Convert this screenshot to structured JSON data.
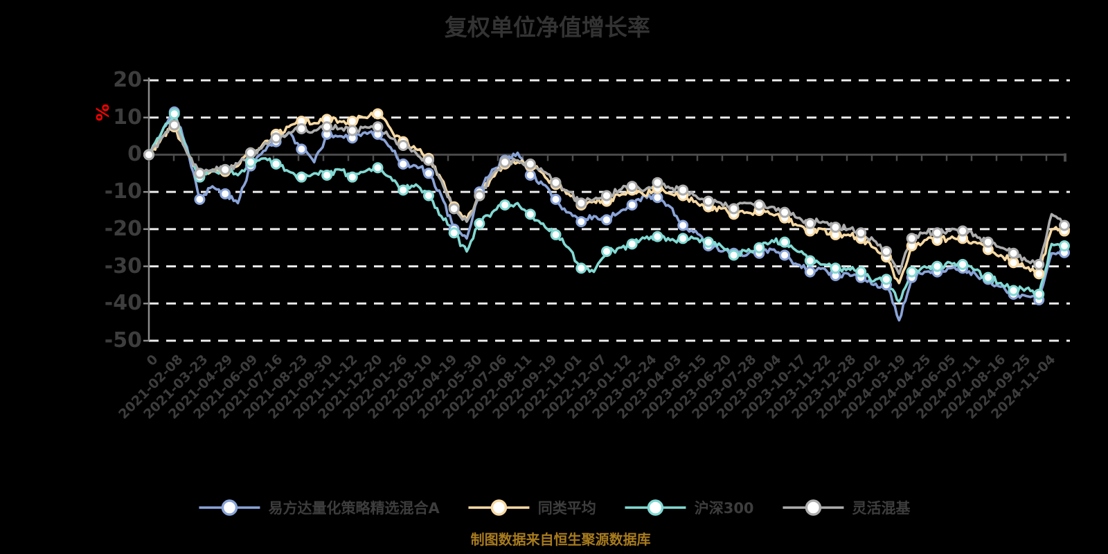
{
  "chart": {
    "title": "复权单位净值增长率",
    "source_note": "制图数据来自恒生聚源数据库",
    "y_axis": {
      "unit": "%"
    },
    "colors": {
      "background": "#000000",
      "title_text": "#333333",
      "axis_text": "#3d3d3d",
      "unit_text": "#ff0000",
      "caption_text": "#a87b1e",
      "gridline": "#ececec",
      "zero_axis": "#4a4a4a",
      "y_axis_line": "#8c8c8c",
      "marker_fill": "#ffffff"
    }
  },
  "chart_data": {
    "type": "line",
    "title": "复权单位净值增长率",
    "xlabel": "",
    "ylabel": "%",
    "ylim": [
      -50,
      20
    ],
    "y_ticks": [
      20,
      10,
      0,
      -10,
      -20,
      -30,
      -40,
      -50
    ],
    "grid": "horizontal dashed, x-axis drawn on zero line",
    "legend_position": "bottom",
    "samples_per_category_interval": 2,
    "categories": [
      "0",
      "2021-02-08",
      "2021-03-23",
      "2021-04-29",
      "2021-06-09",
      "2021-07-16",
      "2021-08-23",
      "2021-09-30",
      "2021-11-12",
      "2021-12-20",
      "2022-01-26",
      "2022-03-10",
      "2022-04-19",
      "2022-05-30",
      "2022-07-06",
      "2022-08-11",
      "2022-09-19",
      "2022-11-01",
      "2022-12-07",
      "2023-01-12",
      "2023-02-24",
      "2023-04-03",
      "2023-05-15",
      "2023-06-20",
      "2023-07-28",
      "2023-09-04",
      "2023-10-17",
      "2023-11-22",
      "2023-12-28",
      "2024-02-02",
      "2024-03-19",
      "2024-04-25",
      "2024-06-05",
      "2024-07-11",
      "2024-08-16",
      "2024-09-25",
      "2024-11-04"
    ],
    "series": [
      {
        "name": "易方达量化策略精选混合A",
        "color": "#8aa4d8",
        "values": [
          0,
          6,
          11.5,
          2,
          -12,
          -8.5,
          -10.5,
          -13,
          -3,
          1,
          3.5,
          6,
          1.5,
          -2,
          5.5,
          5,
          4.5,
          6,
          5.5,
          2,
          -2.5,
          -3,
          -5,
          -11,
          -20,
          -22.5,
          -10,
          -4,
          -1.5,
          0.5,
          -5.5,
          -8,
          -12,
          -15.5,
          -18,
          -16.5,
          -17.5,
          -15.5,
          -13.5,
          -11,
          -11.5,
          -14,
          -19,
          -20.5,
          -24.5,
          -26,
          -26.5,
          -27,
          -26.5,
          -25.5,
          -27,
          -29.5,
          -31.5,
          -30.5,
          -32.5,
          -32,
          -33,
          -35,
          -35,
          -44.5,
          -33,
          -31.5,
          -31.5,
          -30.5,
          -30.5,
          -32,
          -33.5,
          -35.5,
          -37.5,
          -38,
          -39,
          -26.5,
          -26.3
        ]
      },
      {
        "name": "同类平均",
        "color": "#f7d9a3",
        "values": [
          0,
          4.5,
          7.5,
          0.5,
          -5.5,
          -4,
          -4.5,
          -3,
          0.5,
          3,
          5.5,
          7.5,
          9,
          8.5,
          9.5,
          9,
          9,
          10,
          11,
          7,
          3.5,
          1.5,
          -1,
          -6.5,
          -14,
          -17.5,
          -11,
          -6,
          -2.5,
          -2,
          -3,
          -5,
          -8,
          -10.5,
          -13.5,
          -12.5,
          -12.5,
          -11,
          -9.5,
          -11,
          -9,
          -10.5,
          -11,
          -12.5,
          -14,
          -14.5,
          -16,
          -15.5,
          -15,
          -16,
          -17,
          -19,
          -20.5,
          -20,
          -21.5,
          -21.5,
          -22.5,
          -25,
          -27.5,
          -34.5,
          -24.5,
          -23,
          -23,
          -22.5,
          -22.5,
          -23.5,
          -25.5,
          -27,
          -29,
          -30.5,
          -32,
          -20,
          -20.5
        ]
      },
      {
        "name": "沪深300",
        "color": "#82d9d3",
        "values": [
          0,
          6,
          11,
          1,
          -6,
          -4.5,
          -4,
          -5.5,
          -2,
          -1,
          -2.5,
          -4.5,
          -6,
          -5,
          -5.5,
          -4,
          -6,
          -4.5,
          -3.5,
          -6,
          -9.5,
          -8,
          -11,
          -16.5,
          -21,
          -26,
          -18.5,
          -15.5,
          -13.5,
          -13,
          -16,
          -18.5,
          -21.5,
          -25,
          -30.5,
          -31.5,
          -26,
          -25,
          -24,
          -22.5,
          -22,
          -23,
          -22.5,
          -22.5,
          -23.5,
          -24.5,
          -27,
          -26,
          -25,
          -23,
          -23.5,
          -26,
          -28.5,
          -29.5,
          -30.5,
          -30.5,
          -31.5,
          -34,
          -33.5,
          -39.5,
          -31.5,
          -30,
          -30,
          -29,
          -29.5,
          -31,
          -33,
          -34.5,
          -36.5,
          -36,
          -37.5,
          -24,
          -24.5
        ]
      },
      {
        "name": "灵活混基",
        "color": "#adadad",
        "values": [
          0,
          4.5,
          8,
          0.5,
          -5,
          -4,
          -4,
          -2.5,
          0.5,
          2.5,
          4.5,
          6,
          7,
          6.5,
          7.5,
          7,
          6.5,
          7.5,
          7.5,
          4.5,
          2.5,
          0.5,
          -1.5,
          -7,
          -14.5,
          -18,
          -11,
          -5.5,
          -2,
          -1.5,
          -2.5,
          -4.5,
          -7.5,
          -10,
          -13,
          -12,
          -11,
          -9.5,
          -8.5,
          -9.5,
          -7.5,
          -9,
          -9.5,
          -11,
          -12.5,
          -13,
          -14.5,
          -13,
          -13.5,
          -14,
          -15.5,
          -17,
          -18.5,
          -18,
          -19.5,
          -20,
          -21,
          -23,
          -26,
          -32,
          -22.5,
          -21,
          -21,
          -20.5,
          -20.5,
          -21.5,
          -23.5,
          -25,
          -26.5,
          -28.5,
          -29.5,
          -16,
          -19
        ]
      }
    ]
  }
}
